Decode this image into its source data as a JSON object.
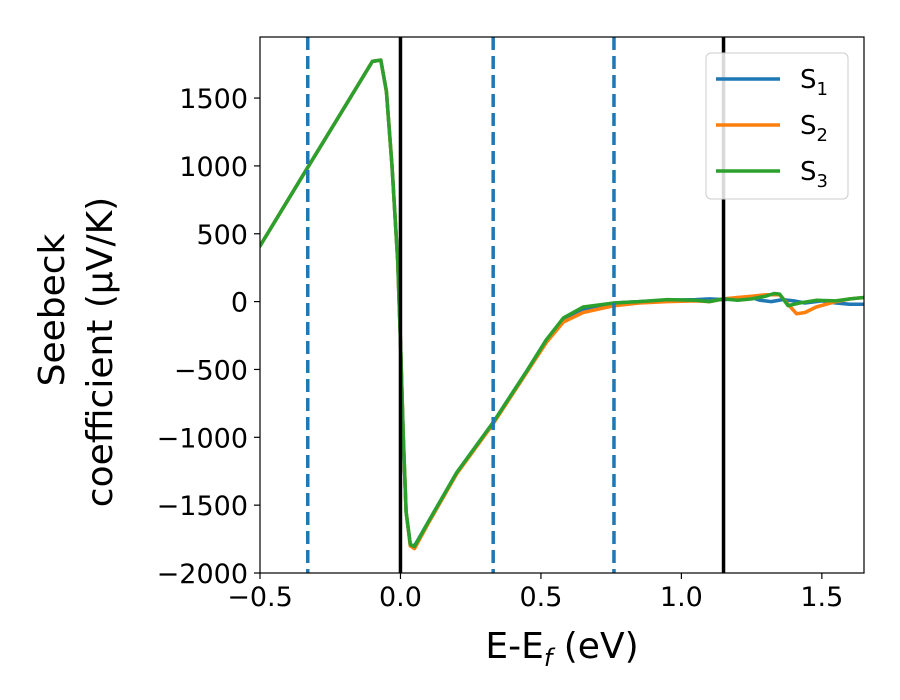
{
  "chart_data": {
    "type": "line",
    "title": "",
    "xlabel": "E-E",
    "xlabel_sub": "f",
    "xlabel_unit": " (eV)",
    "ylabel_line1": "Seebeck",
    "ylabel_line2": "coefficient  (μV/K)",
    "xlim": [
      -0.5,
      1.65
    ],
    "ylim": [
      -2000,
      1950
    ],
    "xticks": [
      -0.5,
      0.0,
      0.5,
      1.0,
      1.5
    ],
    "xtick_labels": [
      "−0.5",
      "0.0",
      "0.5",
      "1.0",
      "1.5"
    ],
    "yticks": [
      -2000,
      -1500,
      -1000,
      -500,
      0,
      500,
      1000,
      1500
    ],
    "ytick_labels": [
      "−2000",
      "−1500",
      "−1000",
      "−500",
      "0",
      "500",
      "1000",
      "1500"
    ],
    "grid": false,
    "legend_position": "top-right",
    "vlines_solid": [
      0.0,
      1.15
    ],
    "vlines_dashed": [
      -0.33,
      0.33,
      0.76
    ],
    "vline_solid_color": "#000000",
    "vline_dashed_color": "#1f77b4",
    "series": [
      {
        "name": "S",
        "name_sub": "1",
        "color": "#1f77b4",
        "x": [
          -0.5,
          -0.33,
          -0.2,
          -0.1,
          -0.07,
          -0.05,
          -0.03,
          -0.01,
          0.0,
          0.01,
          0.02,
          0.035,
          0.05,
          0.1,
          0.2,
          0.33,
          0.45,
          0.52,
          0.58,
          0.65,
          0.76,
          0.85,
          0.95,
          1.05,
          1.1,
          1.15,
          1.2,
          1.25,
          1.28,
          1.32,
          1.36,
          1.4,
          1.44,
          1.5,
          1.55,
          1.6,
          1.65
        ],
        "y": [
          410,
          990,
          1430,
          1770,
          1780,
          1550,
          1000,
          300,
          -300,
          -1000,
          -1550,
          -1790,
          -1800,
          -1620,
          -1260,
          -890,
          -510,
          -280,
          -130,
          -60,
          -10,
          0,
          10,
          15,
          20,
          15,
          20,
          30,
          10,
          0,
          15,
          5,
          -10,
          5,
          -10,
          -20,
          -20
        ]
      },
      {
        "name": "S",
        "name_sub": "2",
        "color": "#ff7f0e",
        "x": [
          -0.5,
          -0.33,
          -0.2,
          -0.1,
          -0.07,
          -0.05,
          -0.03,
          -0.01,
          0.0,
          0.01,
          0.02,
          0.035,
          0.05,
          0.1,
          0.2,
          0.33,
          0.45,
          0.52,
          0.58,
          0.65,
          0.76,
          0.85,
          0.95,
          1.05,
          1.1,
          1.15,
          1.2,
          1.25,
          1.3,
          1.35,
          1.38,
          1.41,
          1.44,
          1.48,
          1.55,
          1.6,
          1.65
        ],
        "y": [
          410,
          990,
          1430,
          1770,
          1780,
          1550,
          1000,
          300,
          -300,
          -1000,
          -1550,
          -1800,
          -1820,
          -1630,
          -1270,
          -900,
          -520,
          -300,
          -150,
          -80,
          -30,
          -10,
          0,
          5,
          0,
          20,
          30,
          40,
          50,
          50,
          -20,
          -90,
          -80,
          -40,
          0,
          20,
          30
        ]
      },
      {
        "name": "S",
        "name_sub": "3",
        "color": "#2ca02c",
        "x": [
          -0.5,
          -0.33,
          -0.2,
          -0.1,
          -0.07,
          -0.05,
          -0.03,
          -0.01,
          0.0,
          0.01,
          0.02,
          0.035,
          0.05,
          0.1,
          0.2,
          0.33,
          0.45,
          0.52,
          0.58,
          0.65,
          0.76,
          0.85,
          0.95,
          1.05,
          1.1,
          1.15,
          1.2,
          1.25,
          1.3,
          1.33,
          1.35,
          1.38,
          1.42,
          1.48,
          1.55,
          1.6,
          1.65
        ],
        "y": [
          410,
          990,
          1430,
          1770,
          1780,
          1550,
          1000,
          300,
          -300,
          -1000,
          -1550,
          -1790,
          -1805,
          -1620,
          -1260,
          -890,
          -510,
          -280,
          -120,
          -40,
          -10,
          0,
          15,
          10,
          0,
          20,
          10,
          20,
          40,
          60,
          55,
          -30,
          -10,
          10,
          5,
          20,
          30
        ]
      }
    ]
  }
}
